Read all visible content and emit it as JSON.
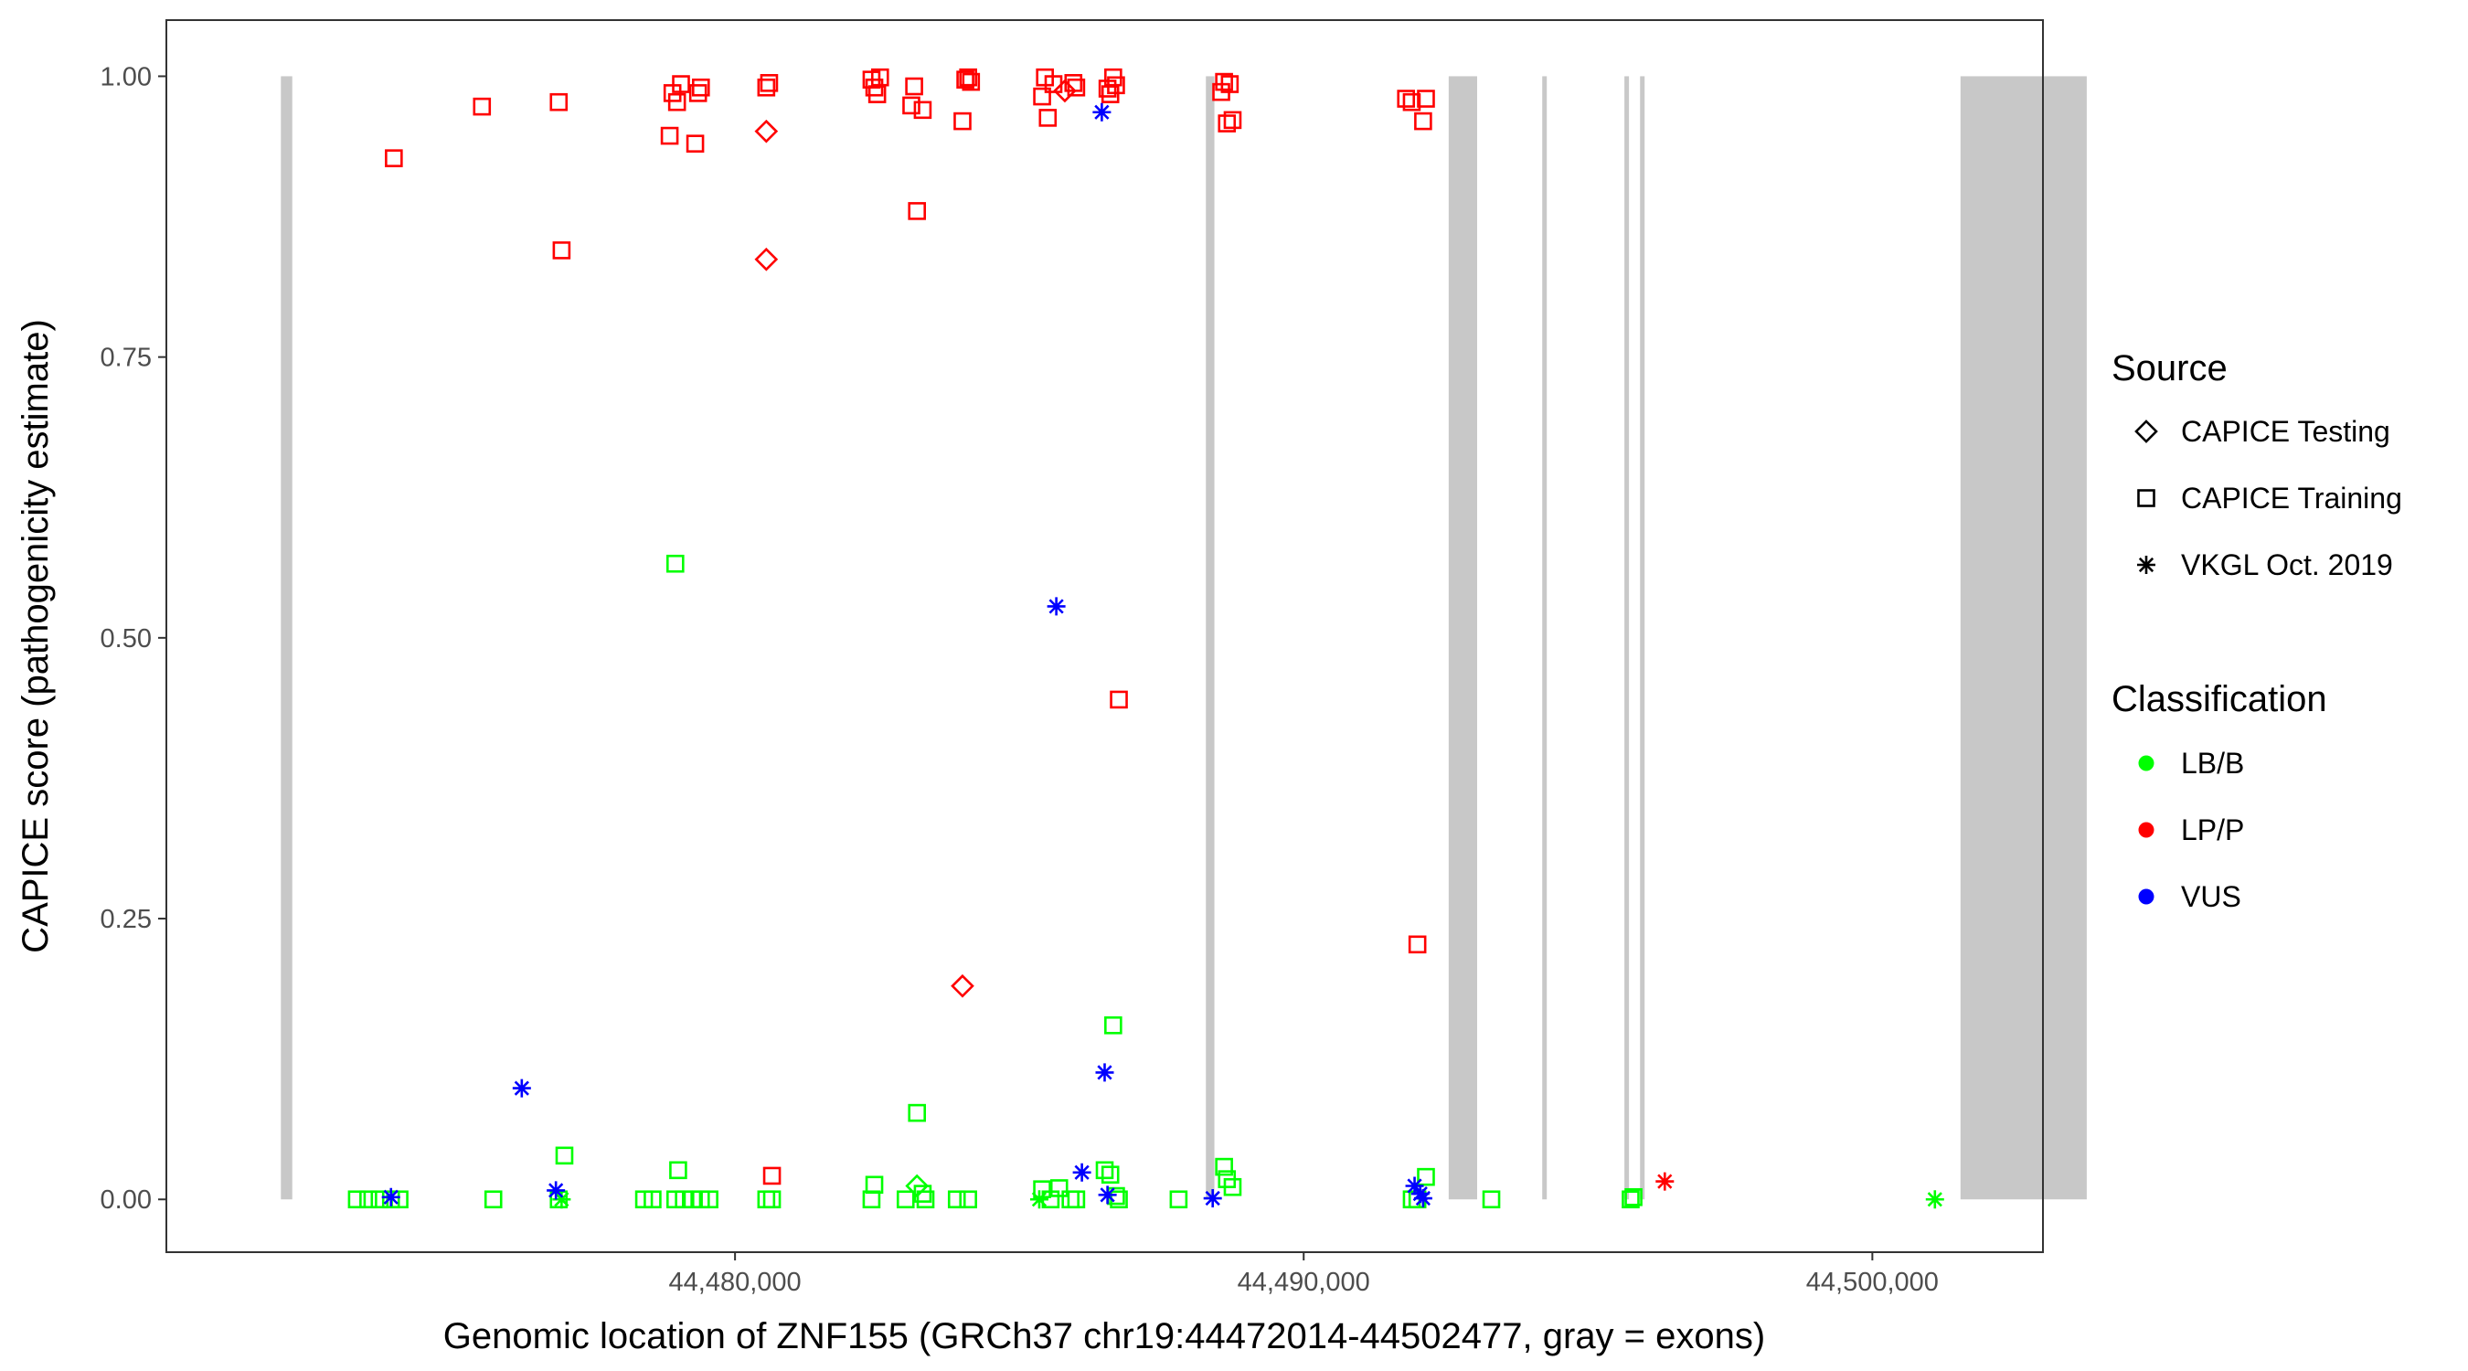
{
  "chart_data": {
    "type": "scatter",
    "xlabel": "Genomic location of ZNF155 (GRCh37 chr19:44472014-44502477, gray = exons)",
    "ylabel": "CAPICE score (pathogenicity estimate)",
    "xlim": [
      44470000,
      44503000
    ],
    "ylim": [
      -0.047,
      1.05
    ],
    "x_ticks": [
      44480000,
      44490000,
      44500000
    ],
    "x_tick_labels": [
      "44,480,000",
      "44,490,000",
      "44,500,000"
    ],
    "y_ticks": [
      0,
      0.25,
      0.5,
      0.75,
      1.0
    ],
    "y_tick_labels": [
      "0.00",
      "0.25",
      "0.50",
      "0.75",
      "1.00"
    ],
    "grid": false,
    "exons": [
      [
        44472014,
        44472214
      ],
      [
        44488280,
        44488430
      ],
      [
        44492550,
        44493050
      ],
      [
        44494200,
        44494270
      ],
      [
        44495640,
        44495720
      ],
      [
        44495920,
        44495990
      ],
      [
        44501550,
        44503770
      ]
    ],
    "colors": {
      "LB/B": "#00ff00",
      "LP/P": "#ff0000",
      "VUS": "#0000ff",
      "exon": "#c8c8c8"
    },
    "legend": {
      "position": "right",
      "source_title": "Source",
      "source_items": [
        {
          "label": "CAPICE Testing",
          "shape": "diamond"
        },
        {
          "label": "CAPICE Training",
          "shape": "square"
        },
        {
          "label": "VKGL Oct. 2019",
          "shape": "star"
        }
      ],
      "class_title": "Classification",
      "class_items": [
        {
          "label": "LB/B",
          "color": "#00ff00"
        },
        {
          "label": "LP/P",
          "color": "#ff0000"
        },
        {
          "label": "VUS",
          "color": "#0000ff"
        }
      ]
    },
    "series": [
      {
        "classification": "LP/P",
        "source": "CAPICE Training",
        "points": [
          [
            44474000,
            0.927
          ],
          [
            44475550,
            0.973
          ],
          [
            44476900,
            0.977
          ],
          [
            44476950,
            0.845
          ],
          [
            44478850,
            0.947
          ],
          [
            44478900,
            0.985
          ],
          [
            44478980,
            0.977
          ],
          [
            44479050,
            0.993
          ],
          [
            44479300,
            0.94
          ],
          [
            44479350,
            0.985
          ],
          [
            44479400,
            0.99
          ],
          [
            44480550,
            0.99
          ],
          [
            44480600,
            0.994
          ],
          [
            44480650,
            0.021
          ],
          [
            44482400,
            0.997
          ],
          [
            44482450,
            0.99
          ],
          [
            44482500,
            0.984
          ],
          [
            44482550,
            0.999
          ],
          [
            44483100,
            0.974
          ],
          [
            44483150,
            0.991
          ],
          [
            44483200,
            0.88
          ],
          [
            44483300,
            0.97
          ],
          [
            44484000,
            0.96
          ],
          [
            44484050,
            0.997
          ],
          [
            44484100,
            0.999
          ],
          [
            44484150,
            0.995
          ],
          [
            44485400,
            0.982
          ],
          [
            44485450,
            0.999
          ],
          [
            44485500,
            0.963
          ],
          [
            44485600,
            0.993
          ],
          [
            44485950,
            0.994
          ],
          [
            44486000,
            0.99
          ],
          [
            44486550,
            0.989
          ],
          [
            44486600,
            0.984
          ],
          [
            44486650,
            0.999
          ],
          [
            44486700,
            0.992
          ],
          [
            44486750,
            0.445
          ],
          [
            44488550,
            0.986
          ],
          [
            44488600,
            0.995
          ],
          [
            44488650,
            0.958
          ],
          [
            44488700,
            0.993
          ],
          [
            44488750,
            0.961
          ],
          [
            44491800,
            0.98
          ],
          [
            44491900,
            0.977
          ],
          [
            44492000,
            0.227
          ],
          [
            44492100,
            0.96
          ],
          [
            44492150,
            0.98
          ]
        ]
      },
      {
        "classification": "LP/P",
        "source": "CAPICE Testing",
        "points": [
          [
            44480550,
            0.951
          ],
          [
            44480550,
            0.837
          ],
          [
            44484000,
            0.19
          ],
          [
            44485800,
            0.987
          ]
        ]
      },
      {
        "classification": "LP/P",
        "source": "VKGL Oct. 2019",
        "points": [
          [
            44496350,
            0.016
          ]
        ]
      },
      {
        "classification": "LB/B",
        "source": "CAPICE Training",
        "points": [
          [
            44473350,
            0.0
          ],
          [
            44473550,
            0.0
          ],
          [
            44473750,
            0.0
          ],
          [
            44473950,
            0.0
          ],
          [
            44474100,
            0.0
          ],
          [
            44475750,
            0.0
          ],
          [
            44476900,
            0.0
          ],
          [
            44477000,
            0.039
          ],
          [
            44478400,
            0.0
          ],
          [
            44478550,
            0.0
          ],
          [
            44478950,
            0.566
          ],
          [
            44478950,
            0.0
          ],
          [
            44479000,
            0.026
          ],
          [
            44479100,
            0.0
          ],
          [
            44479250,
            0.0
          ],
          [
            44479400,
            0.0
          ],
          [
            44479550,
            0.0
          ],
          [
            44480550,
            0.0
          ],
          [
            44480650,
            0.0
          ],
          [
            44482400,
            0.0
          ],
          [
            44482450,
            0.013
          ],
          [
            44483000,
            0.0
          ],
          [
            44483200,
            0.077
          ],
          [
            44483300,
            0.005
          ],
          [
            44483350,
            0.0
          ],
          [
            44483900,
            0.0
          ],
          [
            44484100,
            0.0
          ],
          [
            44485400,
            0.009
          ],
          [
            44485550,
            0.0
          ],
          [
            44485700,
            0.01
          ],
          [
            44485900,
            0.0
          ],
          [
            44486000,
            0.0
          ],
          [
            44486500,
            0.026
          ],
          [
            44486600,
            0.022
          ],
          [
            44486650,
            0.155
          ],
          [
            44486700,
            0.003
          ],
          [
            44486750,
            0.0
          ],
          [
            44487800,
            0.0
          ],
          [
            44488600,
            0.029
          ],
          [
            44488650,
            0.018
          ],
          [
            44488750,
            0.011
          ],
          [
            44491900,
            0.0
          ],
          [
            44492000,
            0.0
          ],
          [
            44492150,
            0.02
          ],
          [
            44493300,
            0.0
          ],
          [
            44495750,
            0.0
          ],
          [
            44495800,
            0.002
          ]
        ]
      },
      {
        "classification": "LB/B",
        "source": "CAPICE Testing",
        "points": [
          [
            44483200,
            0.012
          ]
        ]
      },
      {
        "classification": "LB/B",
        "source": "VKGL Oct. 2019",
        "points": [
          [
            44476950,
            0.0
          ],
          [
            44485350,
            0.0
          ],
          [
            44501100,
            0.0
          ]
        ]
      },
      {
        "classification": "VUS",
        "source": "VKGL Oct. 2019",
        "points": [
          [
            44473950,
            0.002
          ],
          [
            44476250,
            0.099
          ],
          [
            44476850,
            0.008
          ],
          [
            44485650,
            0.528
          ],
          [
            44486100,
            0.024
          ],
          [
            44486450,
            0.968
          ],
          [
            44486500,
            0.113
          ],
          [
            44486550,
            0.004
          ],
          [
            44488400,
            0.001
          ],
          [
            44491950,
            0.012
          ],
          [
            44492050,
            0.005
          ],
          [
            44492100,
            0.001
          ]
        ]
      }
    ]
  }
}
